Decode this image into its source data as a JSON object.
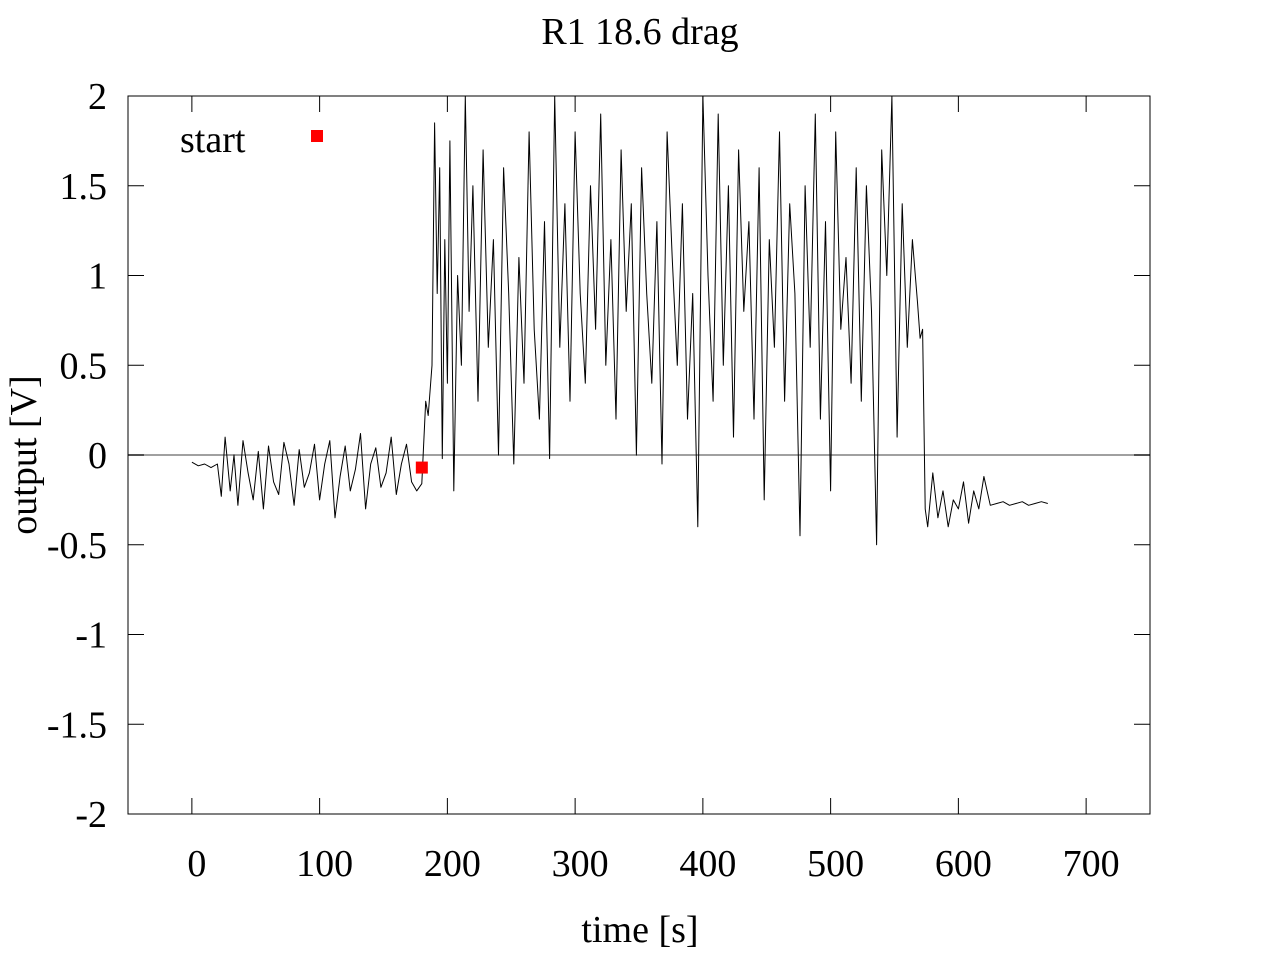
{
  "chart_data": {
    "type": "line",
    "title": "R1 18.6 drag",
    "xlabel": "time [s]",
    "ylabel": "output [V]",
    "xlim": [
      -50,
      750
    ],
    "ylim": [
      -2,
      2
    ],
    "xticks": [
      0,
      100,
      200,
      300,
      400,
      500,
      600,
      700
    ],
    "yticks": [
      -2,
      -1.5,
      -1,
      -0.5,
      0,
      0.5,
      1,
      1.5,
      2
    ],
    "xtick_labels": [
      "0",
      "100",
      "200",
      "300",
      "400",
      "500",
      "600",
      "700"
    ],
    "ytick_labels": [
      "-2",
      "-1.5",
      "-1",
      "-0.5",
      "0",
      "0.5",
      "1",
      "1.5",
      "2"
    ],
    "zero_line": true,
    "grid": false,
    "legend_position": "top-left",
    "series": [
      {
        "type": "line",
        "color": "#000000",
        "x": [
          0,
          5,
          10,
          15,
          20,
          23,
          26,
          30,
          33,
          36,
          40,
          44,
          48,
          52,
          56,
          60,
          64,
          68,
          72,
          76,
          80,
          84,
          88,
          92,
          96,
          100,
          104,
          108,
          112,
          116,
          120,
          124,
          128,
          132,
          136,
          140,
          144,
          148,
          152,
          156,
          160,
          164,
          168,
          172,
          176,
          180,
          183,
          185,
          188,
          190,
          192,
          194,
          196,
          198,
          200,
          202,
          205,
          208,
          211,
          214,
          217,
          220,
          224,
          228,
          232,
          236,
          240,
          244,
          248,
          252,
          256,
          260,
          264,
          268,
          272,
          276,
          280,
          284,
          288,
          292,
          296,
          300,
          304,
          308,
          312,
          316,
          320,
          324,
          328,
          332,
          336,
          340,
          344,
          348,
          352,
          356,
          360,
          364,
          368,
          372,
          376,
          380,
          384,
          388,
          392,
          396,
          400,
          404,
          408,
          412,
          416,
          420,
          424,
          428,
          432,
          436,
          440,
          444,
          448,
          452,
          456,
          460,
          464,
          468,
          472,
          476,
          480,
          484,
          488,
          492,
          496,
          500,
          504,
          508,
          512,
          516,
          520,
          524,
          528,
          532,
          536,
          540,
          544,
          548,
          552,
          556,
          560,
          564,
          568,
          570,
          572,
          574,
          576,
          580,
          584,
          588,
          592,
          596,
          600,
          604,
          608,
          612,
          616,
          620,
          625,
          630,
          635,
          640,
          645,
          650,
          655,
          660,
          665,
          670
        ],
        "values": [
          -0.04,
          -0.06,
          -0.05,
          -0.07,
          -0.05,
          -0.23,
          0.1,
          -0.2,
          0.0,
          -0.28,
          0.08,
          -0.1,
          -0.25,
          0.02,
          -0.3,
          0.05,
          -0.15,
          -0.22,
          0.07,
          -0.05,
          -0.28,
          0.03,
          -0.18,
          -0.1,
          0.06,
          -0.25,
          -0.05,
          0.08,
          -0.35,
          -0.12,
          0.05,
          -0.2,
          -0.08,
          0.12,
          -0.3,
          -0.05,
          0.04,
          -0.18,
          -0.1,
          0.1,
          -0.22,
          -0.05,
          0.06,
          -0.15,
          -0.2,
          -0.16,
          0.3,
          0.22,
          0.5,
          1.85,
          0.9,
          1.6,
          -0.02,
          1.2,
          0.4,
          1.75,
          -0.2,
          1.0,
          0.5,
          2.0,
          0.8,
          1.5,
          0.3,
          1.7,
          0.6,
          1.2,
          0.0,
          1.6,
          0.9,
          -0.05,
          1.1,
          0.4,
          1.8,
          0.7,
          0.2,
          1.3,
          -0.02,
          2.0,
          0.6,
          1.4,
          0.3,
          1.8,
          0.9,
          0.4,
          1.5,
          0.7,
          1.9,
          0.5,
          1.2,
          0.2,
          1.7,
          0.8,
          1.4,
          0.0,
          1.6,
          0.9,
          0.4,
          1.3,
          -0.05,
          1.8,
          1.1,
          0.5,
          1.4,
          0.2,
          0.9,
          -0.4,
          2.0,
          1.0,
          0.3,
          1.9,
          0.5,
          1.5,
          0.1,
          1.7,
          0.8,
          1.3,
          0.2,
          1.6,
          -0.25,
          1.2,
          0.6,
          1.8,
          0.3,
          1.4,
          0.9,
          -0.45,
          1.5,
          0.6,
          1.9,
          0.2,
          1.3,
          -0.2,
          1.8,
          0.7,
          1.1,
          0.4,
          1.6,
          0.3,
          1.5,
          0.8,
          -0.5,
          1.7,
          1.0,
          2.0,
          0.1,
          1.4,
          0.6,
          1.2,
          0.85,
          0.65,
          0.7,
          -0.3,
          -0.4,
          -0.1,
          -0.35,
          -0.2,
          -0.4,
          -0.25,
          -0.3,
          -0.15,
          -0.38,
          -0.2,
          -0.3,
          -0.12,
          -0.28,
          -0.27,
          -0.26,
          -0.28,
          -0.27,
          -0.26,
          -0.28,
          -0.27,
          -0.26,
          -0.27
        ]
      },
      {
        "type": "point",
        "name": "start",
        "color": "#ff0000",
        "x": [
          180
        ],
        "values": [
          -0.07
        ]
      }
    ]
  }
}
